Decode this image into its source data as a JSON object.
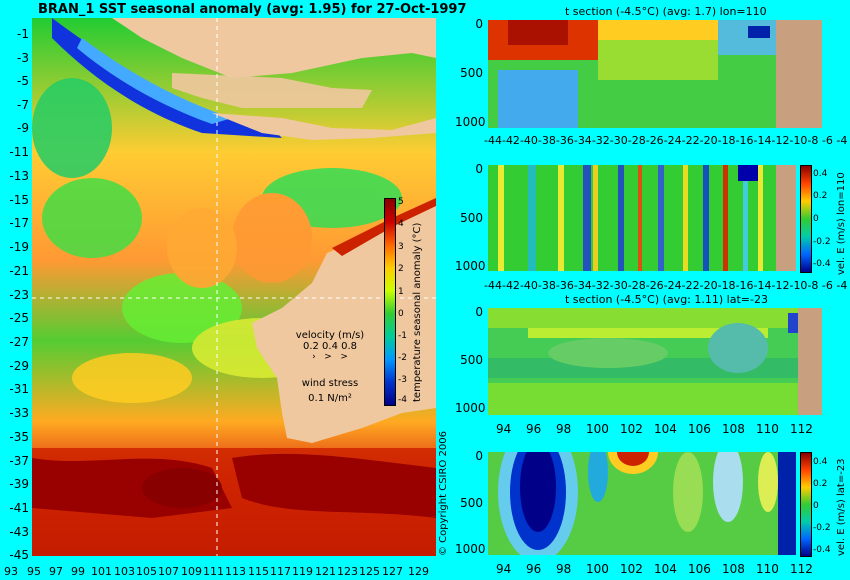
{
  "map": {
    "title": "BRAN_1  SST seasonal anomaly (avg: 1.95) for 27-Oct-1997",
    "lat_ticks": [
      "-1",
      "-3",
      "-5",
      "-7",
      "-9",
      "-11",
      "-13",
      "-15",
      "-17",
      "-19",
      "-21",
      "-23",
      "-25",
      "-27",
      "-29",
      "-31",
      "-33",
      "-35",
      "-37",
      "-39",
      "-41",
      "-43",
      "-45"
    ],
    "lon_ticks": [
      "93",
      "95",
      "97",
      "99",
      "101",
      "103",
      "105",
      "107",
      "109",
      "111",
      "113",
      "115",
      "117",
      "119",
      "121",
      "123",
      "125",
      "127",
      "129"
    ],
    "colorbar": {
      "label": "temperature seasonal anomaly (°C)",
      "ticks": [
        "5",
        "4",
        "3",
        "2",
        "1",
        "0",
        "-1",
        "-2",
        "-3",
        "-4"
      ]
    },
    "velocity": {
      "label": "velocity (m/s)",
      "scale": "0.2 0.4 0.8"
    },
    "wind": {
      "label": "wind stress",
      "scale": "0.1 N/m²"
    },
    "copyright": "© Copyright CSIRO 2006",
    "colors": {
      "ocean_bg": "#00ff00",
      "land": "#f0c8a0",
      "warm": "#aa0000",
      "cool": "#0000aa"
    }
  },
  "panels": [
    {
      "title": "t section (-4.5°C) (avg: 1.7) lon=110",
      "y_ticks": [
        "0",
        "500",
        "1000"
      ],
      "x_ticks": [
        "-44",
        "-42",
        "-40",
        "-38",
        "-36",
        "-34",
        "-32",
        "-30",
        "-28",
        "-26",
        "-24",
        "-22",
        "-20",
        "-18",
        "-16",
        "-14",
        "-12",
        "-10",
        "-8",
        "-6",
        "-4"
      ]
    },
    {
      "title": "",
      "y_ticks": [
        "0",
        "500",
        "1000"
      ],
      "x_ticks": [
        "-44",
        "-42",
        "-40",
        "-38",
        "-36",
        "-34",
        "-32",
        "-30",
        "-28",
        "-26",
        "-24",
        "-22",
        "-20",
        "-18",
        "-16",
        "-14",
        "-12",
        "-10",
        "-8",
        "-6",
        "-4"
      ],
      "colorbar": {
        "label": "vel. E (m/s) lon=110",
        "ticks": [
          "0.4",
          "0.2",
          "0",
          "-0.2",
          "-0.4"
        ]
      }
    },
    {
      "title": "t section (-4.5°C) (avg: 1.11) lat=-23",
      "y_ticks": [
        "0",
        "500",
        "1000"
      ],
      "x_ticks": [
        "94",
        "96",
        "98",
        "100",
        "102",
        "104",
        "106",
        "108",
        "110",
        "112"
      ]
    },
    {
      "title": "",
      "y_ticks": [
        "0",
        "500",
        "1000"
      ],
      "x_ticks": [
        "94",
        "96",
        "98",
        "100",
        "102",
        "104",
        "106",
        "108",
        "110",
        "112"
      ],
      "colorbar": {
        "label": "vel. E (m/s) lat=-23",
        "ticks": [
          "0.4",
          "0.2",
          "0",
          "-0.2",
          "-0.4"
        ]
      }
    }
  ]
}
